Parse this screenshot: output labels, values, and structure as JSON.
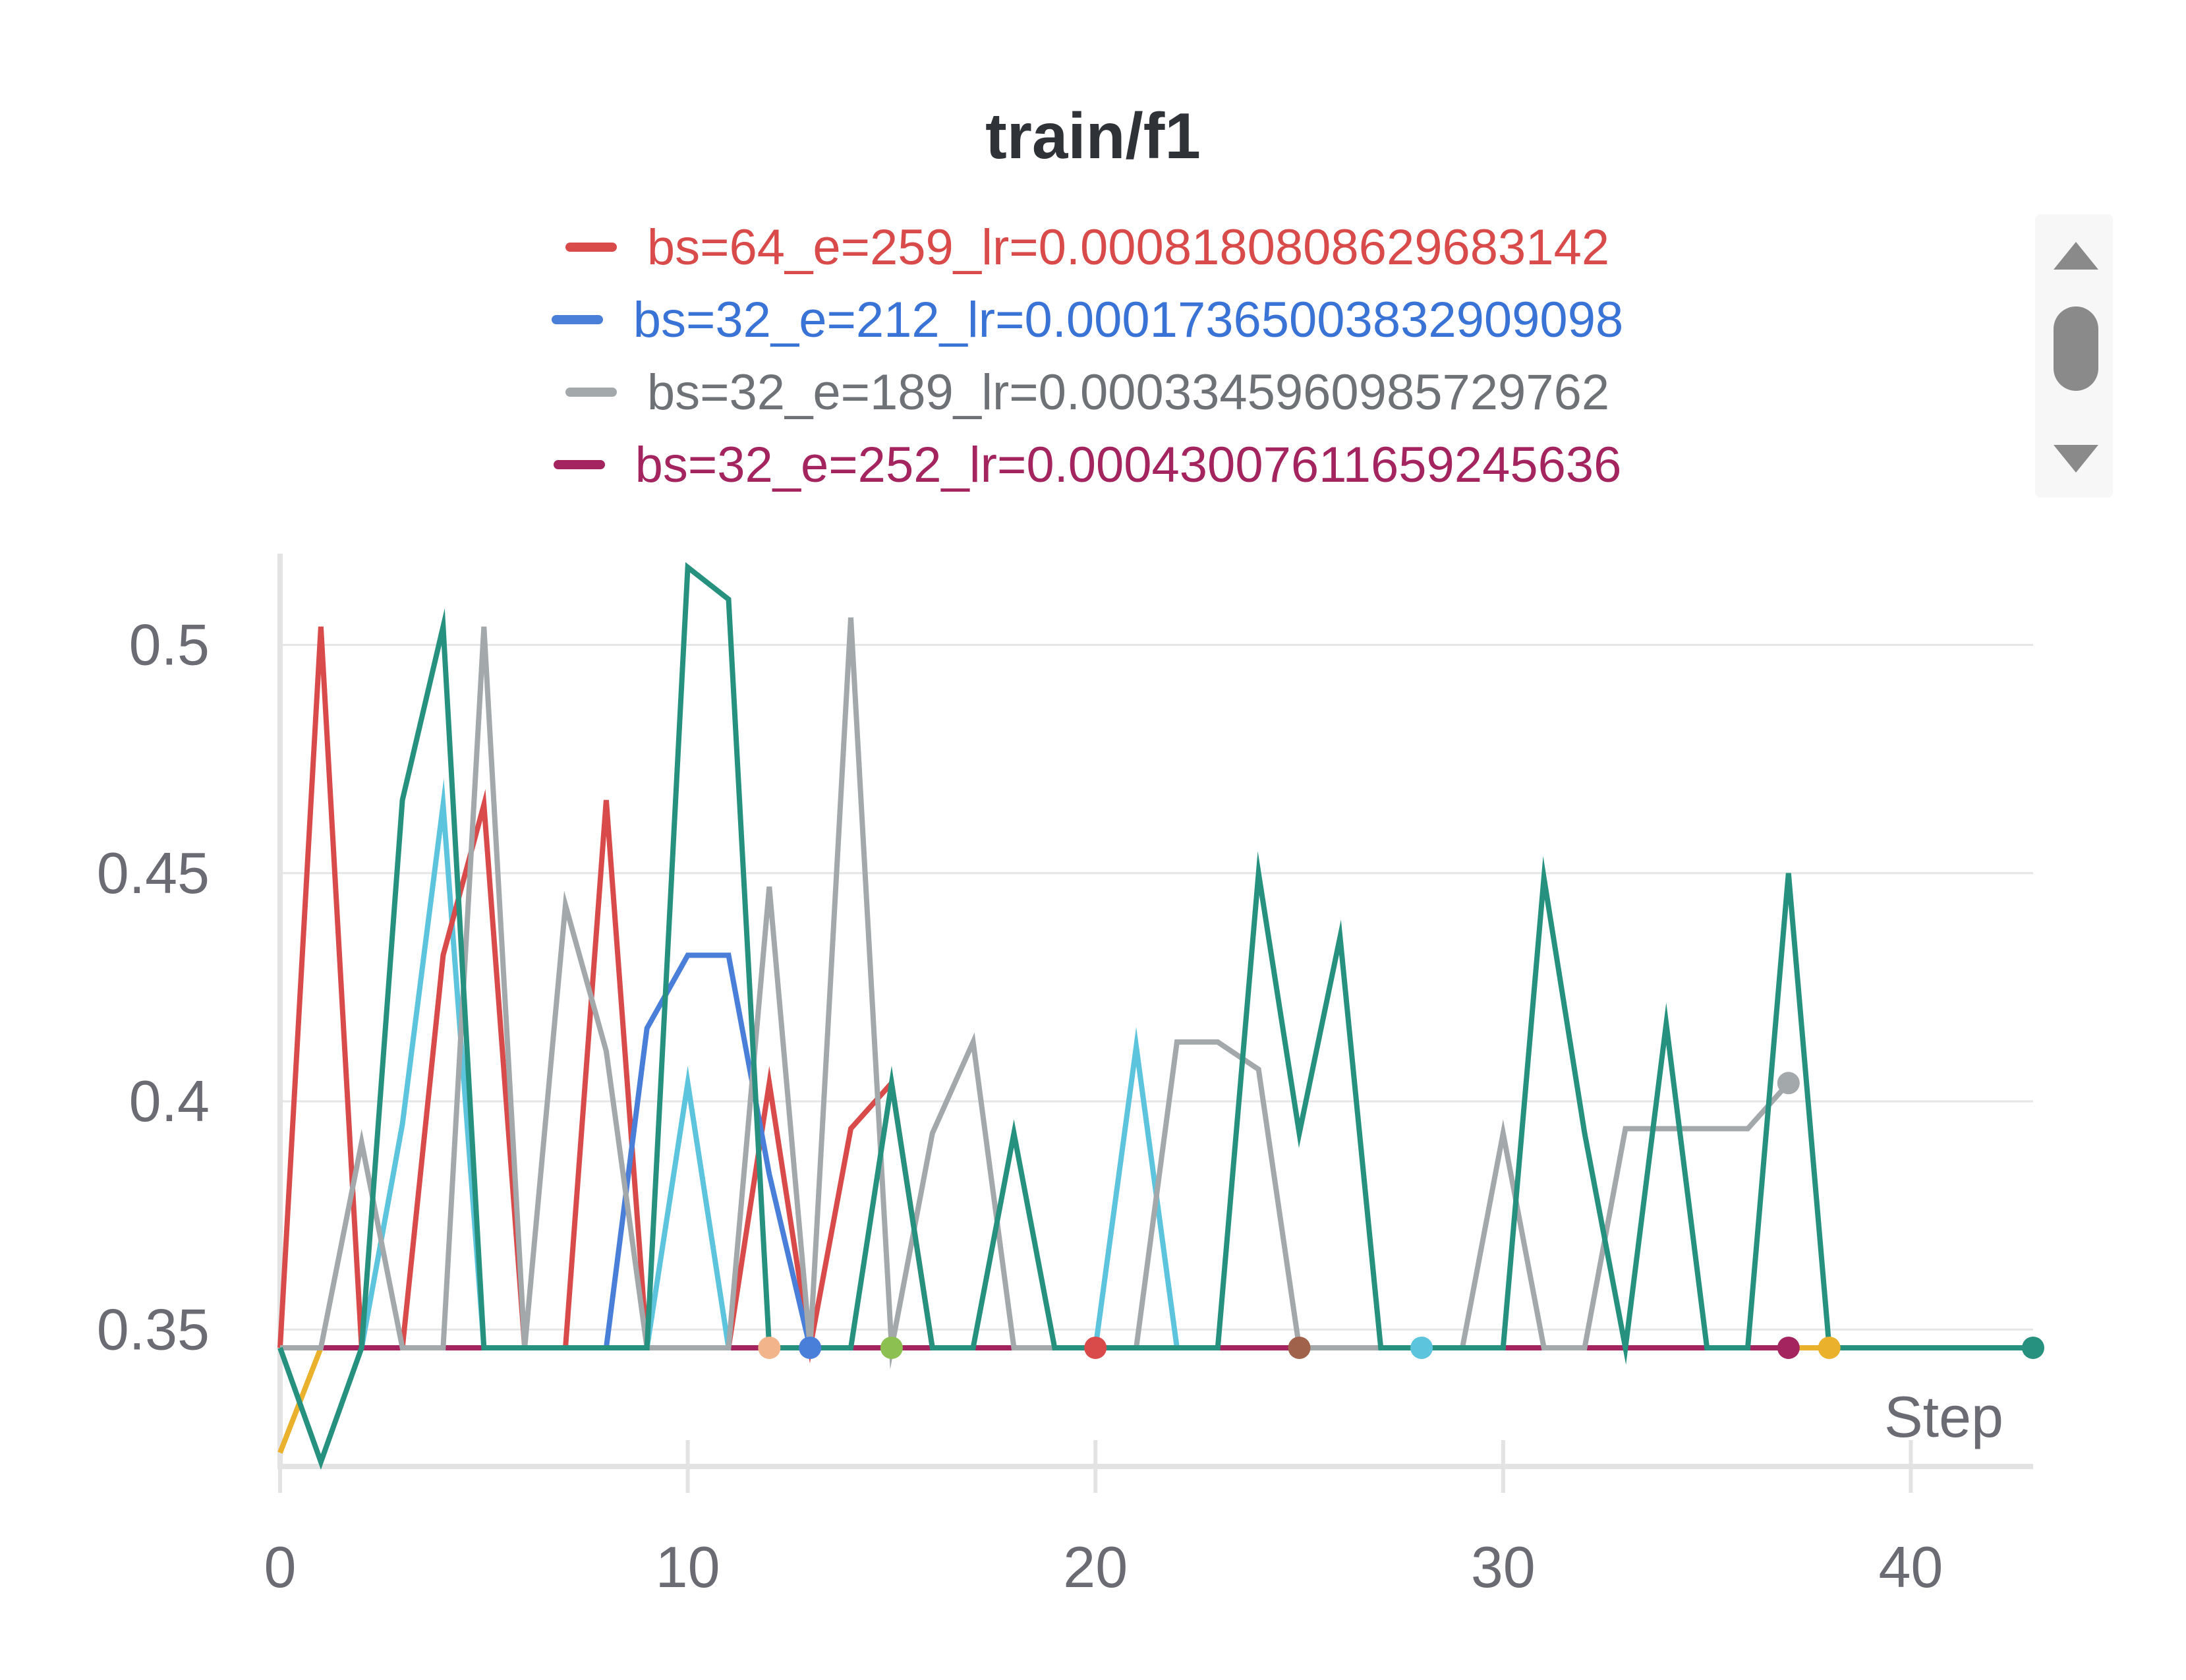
{
  "chart_data": {
    "type": "line",
    "title": "train/f1",
    "xlabel": "Step",
    "ylabel": "",
    "xlim": [
      0,
      43
    ],
    "ylim": [
      0.32,
      0.52
    ],
    "xticks": [
      0,
      10,
      20,
      30,
      40
    ],
    "yticks": [
      0.35,
      0.4,
      0.45,
      0.5
    ],
    "ytick_labels": [
      "0.35",
      "0.4",
      "0.45",
      "0.5"
    ],
    "grid": true,
    "legend_position": "top",
    "legend": [
      {
        "name": "bs=64_e=259_lr=0.0008180808629683142",
        "color": "#d94a4a"
      },
      {
        "name": "bs=32_e=212_lr=0.00017365003832909098",
        "color": "#4a7fd9"
      },
      {
        "name": "bs=32_e=189_lr=0.0003345960985729762",
        "color": "#a3a8aa"
      },
      {
        "name": "bs=32_e=252_lr=0.00043007611659245636",
        "color": "#a3245e"
      }
    ],
    "series": [
      {
        "color": "#eab12c",
        "x": [
          0,
          1,
          2,
          10,
          20,
          30,
          38
        ],
        "y": [
          0.323,
          0.346,
          0.346,
          0.346,
          0.346,
          0.346,
          0.346
        ],
        "end_marker": true
      },
      {
        "color": "#5cc4dc",
        "x": [
          0,
          1,
          2,
          3,
          4,
          5,
          6,
          7,
          8,
          9,
          10,
          11,
          12,
          13,
          20,
          21,
          22,
          23,
          26,
          27,
          28
        ],
        "y": [
          0.346,
          0.346,
          0.346,
          0.395,
          0.465,
          0.346,
          0.346,
          0.346,
          0.346,
          0.346,
          0.404,
          0.346,
          0.346,
          0.346,
          0.346,
          0.412,
          0.346,
          0.346,
          0.346,
          0.346,
          0.346
        ],
        "end_marker": true
      },
      {
        "color": "#d94a4a",
        "x": [
          0,
          1,
          2,
          3,
          4,
          5,
          6,
          7,
          8,
          9,
          10,
          11,
          12,
          13,
          14,
          15,
          16,
          17,
          18,
          19,
          20
        ],
        "y": [
          0.346,
          0.504,
          0.346,
          0.346,
          0.432,
          0.465,
          0.346,
          0.346,
          0.466,
          0.346,
          0.346,
          0.346,
          0.404,
          0.346,
          0.394,
          0.404,
          0.346,
          0.346,
          0.346,
          0.346,
          0.346
        ],
        "end_marker": true
      },
      {
        "color": "#4a7fd9",
        "x": [
          0,
          8,
          9,
          10,
          11,
          12,
          13
        ],
        "y": [
          0.346,
          0.346,
          0.416,
          0.432,
          0.432,
          0.384,
          0.346
        ],
        "end_marker": true
      },
      {
        "color": "#f2b48a",
        "x": [
          0,
          12
        ],
        "y": [
          0.346,
          0.346
        ],
        "end_marker": true
      },
      {
        "color": "#8cc152",
        "x": [
          0,
          15
        ],
        "y": [
          0.346,
          0.346
        ],
        "end_marker": true
      },
      {
        "color": "#a0624a",
        "x": [
          0,
          25
        ],
        "y": [
          0.346,
          0.346
        ],
        "end_marker": true
      },
      {
        "color": "#a3245e",
        "x": [
          0,
          37
        ],
        "y": [
          0.346,
          0.346
        ],
        "end_marker": true
      },
      {
        "color": "#a3a8aa",
        "x": [
          0,
          1,
          2,
          3,
          4,
          5,
          6,
          7,
          8,
          9,
          10,
          11,
          12,
          13,
          14,
          15,
          16,
          17,
          18,
          19,
          20,
          21,
          22,
          23,
          24,
          25,
          26,
          27,
          28,
          29,
          30,
          31,
          32,
          33,
          34,
          35,
          36,
          37
        ],
        "y": [
          0.346,
          0.346,
          0.391,
          0.346,
          0.346,
          0.504,
          0.346,
          0.443,
          0.411,
          0.346,
          0.346,
          0.346,
          0.447,
          0.346,
          0.506,
          0.346,
          0.393,
          0.413,
          0.346,
          0.346,
          0.346,
          0.346,
          0.413,
          0.413,
          0.407,
          0.346,
          0.346,
          0.346,
          0.346,
          0.346,
          0.393,
          0.346,
          0.346,
          0.394,
          0.394,
          0.394,
          0.394,
          0.404
        ],
        "end_marker": true
      },
      {
        "color": "#26917f",
        "x": [
          0,
          1,
          2,
          3,
          4,
          5,
          6,
          7,
          8,
          9,
          10,
          11,
          12,
          13,
          14,
          15,
          16,
          17,
          18,
          19,
          20,
          21,
          22,
          23,
          24,
          25,
          26,
          27,
          28,
          29,
          30,
          31,
          32,
          33,
          34,
          35,
          36,
          37,
          38,
          39,
          40,
          41,
          42,
          43
        ],
        "y": [
          0.346,
          0.321,
          0.346,
          0.466,
          0.504,
          0.346,
          0.346,
          0.346,
          0.346,
          0.346,
          0.517,
          0.51,
          0.346,
          0.346,
          0.346,
          0.404,
          0.346,
          0.346,
          0.393,
          0.346,
          0.346,
          0.346,
          0.346,
          0.346,
          0.45,
          0.393,
          0.436,
          0.346,
          0.346,
          0.346,
          0.346,
          0.449,
          0.393,
          0.346,
          0.417,
          0.346,
          0.346,
          0.45,
          0.346,
          0.346,
          0.346,
          0.346,
          0.346,
          0.346
        ],
        "end_marker": true
      }
    ]
  }
}
